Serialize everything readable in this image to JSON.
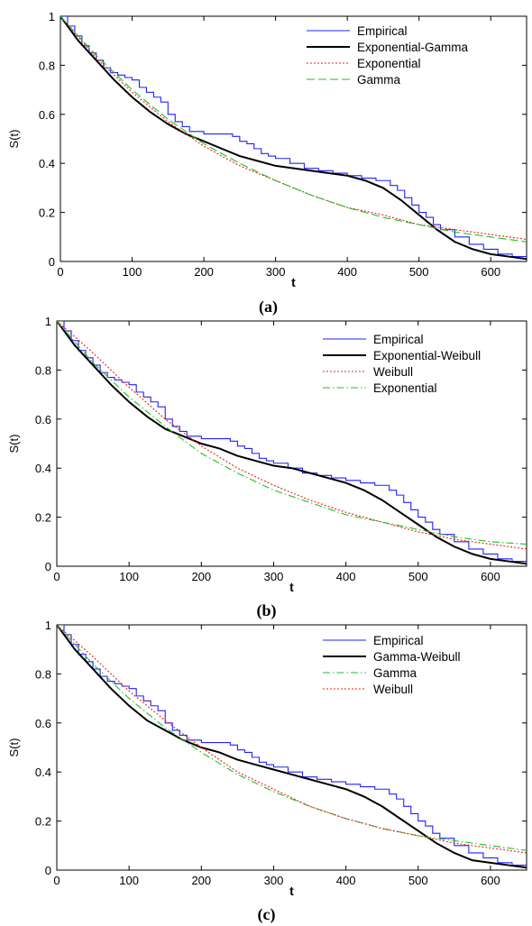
{
  "chart_data": [
    {
      "type": "line",
      "panel_label": "(a)",
      "xlabel": "t",
      "ylabel": "S(t)",
      "xlim": [
        0,
        650
      ],
      "ylim": [
        0,
        1
      ],
      "xticks": [
        0,
        100,
        200,
        300,
        400,
        500,
        600
      ],
      "yticks": [
        0,
        0.2,
        0.4,
        0.6,
        0.8,
        1
      ],
      "xtick_labels": [
        "0",
        "100",
        "200",
        "300",
        "400",
        "500",
        "600"
      ],
      "ytick_labels": [
        "0",
        "0.2",
        "0.4",
        "0.6",
        "0.8",
        "1"
      ],
      "grid": false,
      "legend_position": "top-right",
      "series": [
        {
          "name": "Empirical",
          "color": "#2020ff",
          "style": "step",
          "x": [
            0,
            10,
            20,
            30,
            40,
            50,
            60,
            70,
            80,
            90,
            100,
            110,
            120,
            130,
            140,
            150,
            160,
            170,
            180,
            200,
            220,
            240,
            250,
            260,
            270,
            280,
            290,
            300,
            320,
            340,
            360,
            380,
            400,
            420,
            440,
            460,
            470,
            480,
            490,
            500,
            510,
            520,
            530,
            550,
            570,
            590,
            610,
            630,
            650
          ],
          "y": [
            1.0,
            0.96,
            0.92,
            0.88,
            0.85,
            0.82,
            0.79,
            0.77,
            0.76,
            0.75,
            0.74,
            0.71,
            0.69,
            0.67,
            0.65,
            0.6,
            0.57,
            0.55,
            0.53,
            0.52,
            0.52,
            0.51,
            0.49,
            0.48,
            0.46,
            0.44,
            0.43,
            0.42,
            0.4,
            0.38,
            0.37,
            0.36,
            0.35,
            0.34,
            0.33,
            0.31,
            0.29,
            0.26,
            0.23,
            0.2,
            0.18,
            0.15,
            0.13,
            0.1,
            0.07,
            0.05,
            0.03,
            0.02,
            0.01
          ]
        },
        {
          "name": "Exponential-Gamma",
          "color": "#000000",
          "style": "solid",
          "x": [
            0,
            25,
            50,
            75,
            100,
            125,
            150,
            175,
            200,
            225,
            250,
            275,
            300,
            325,
            350,
            375,
            400,
            425,
            450,
            475,
            500,
            525,
            550,
            575,
            600,
            625,
            650
          ],
          "y": [
            1.0,
            0.9,
            0.82,
            0.74,
            0.67,
            0.61,
            0.56,
            0.52,
            0.49,
            0.46,
            0.43,
            0.41,
            0.39,
            0.38,
            0.37,
            0.36,
            0.35,
            0.33,
            0.3,
            0.25,
            0.19,
            0.13,
            0.08,
            0.05,
            0.03,
            0.02,
            0.01
          ]
        },
        {
          "name": "Exponential",
          "color": "#e82020",
          "style": "dotted",
          "x": [
            0,
            50,
            100,
            150,
            200,
            250,
            300,
            350,
            400,
            450,
            500,
            550,
            600,
            650
          ],
          "y": [
            1.0,
            0.83,
            0.69,
            0.57,
            0.47,
            0.39,
            0.33,
            0.27,
            0.22,
            0.19,
            0.15,
            0.13,
            0.11,
            0.09
          ]
        },
        {
          "name": "Gamma",
          "color": "#20c020",
          "style": "dashed",
          "x": [
            0,
            50,
            100,
            150,
            200,
            250,
            300,
            350,
            400,
            450,
            500,
            550,
            600,
            650
          ],
          "y": [
            1.0,
            0.84,
            0.7,
            0.58,
            0.48,
            0.4,
            0.33,
            0.27,
            0.22,
            0.18,
            0.15,
            0.12,
            0.1,
            0.08
          ]
        }
      ]
    },
    {
      "type": "line",
      "panel_label": "(b)",
      "xlabel": "t",
      "ylabel": "S(t)",
      "xlim": [
        0,
        650
      ],
      "ylim": [
        0,
        1
      ],
      "xticks": [
        0,
        100,
        200,
        300,
        400,
        500,
        600
      ],
      "yticks": [
        0,
        0.2,
        0.4,
        0.6,
        0.8,
        1
      ],
      "xtick_labels": [
        "0",
        "100",
        "200",
        "300",
        "400",
        "500",
        "600"
      ],
      "ytick_labels": [
        "0",
        "0.2",
        "0.4",
        "0.6",
        "0.8",
        "1"
      ],
      "grid": false,
      "legend_position": "top-right",
      "series": [
        {
          "name": "Empirical",
          "color": "#2020ff",
          "style": "step",
          "x": [
            0,
            10,
            20,
            30,
            40,
            50,
            60,
            70,
            80,
            90,
            100,
            110,
            120,
            130,
            140,
            150,
            160,
            170,
            180,
            200,
            220,
            240,
            250,
            260,
            270,
            280,
            290,
            300,
            320,
            340,
            360,
            380,
            400,
            420,
            440,
            460,
            470,
            480,
            490,
            500,
            510,
            520,
            530,
            550,
            570,
            590,
            610,
            630,
            650
          ],
          "y": [
            1.0,
            0.96,
            0.92,
            0.88,
            0.85,
            0.82,
            0.79,
            0.77,
            0.76,
            0.75,
            0.74,
            0.71,
            0.69,
            0.67,
            0.65,
            0.6,
            0.57,
            0.55,
            0.53,
            0.52,
            0.52,
            0.51,
            0.49,
            0.48,
            0.46,
            0.44,
            0.43,
            0.42,
            0.4,
            0.38,
            0.37,
            0.36,
            0.35,
            0.34,
            0.33,
            0.31,
            0.29,
            0.26,
            0.23,
            0.2,
            0.18,
            0.15,
            0.13,
            0.1,
            0.07,
            0.05,
            0.03,
            0.02,
            0.01
          ]
        },
        {
          "name": "Exponential-Weibull",
          "color": "#000000",
          "style": "solid",
          "x": [
            0,
            25,
            50,
            75,
            100,
            125,
            150,
            175,
            200,
            225,
            250,
            275,
            300,
            325,
            350,
            375,
            400,
            425,
            450,
            475,
            500,
            525,
            550,
            575,
            600,
            625,
            650
          ],
          "y": [
            1.0,
            0.9,
            0.82,
            0.74,
            0.67,
            0.61,
            0.56,
            0.53,
            0.5,
            0.48,
            0.45,
            0.43,
            0.41,
            0.4,
            0.38,
            0.36,
            0.34,
            0.31,
            0.27,
            0.22,
            0.17,
            0.12,
            0.08,
            0.05,
            0.03,
            0.02,
            0.01
          ]
        },
        {
          "name": "Weibull",
          "color": "#e82020",
          "style": "dotted",
          "x": [
            0,
            50,
            100,
            150,
            200,
            250,
            300,
            350,
            400,
            450,
            500,
            550,
            600,
            650
          ],
          "y": [
            1.0,
            0.87,
            0.73,
            0.6,
            0.49,
            0.4,
            0.33,
            0.27,
            0.22,
            0.18,
            0.14,
            0.11,
            0.09,
            0.07
          ]
        },
        {
          "name": "Exponential",
          "color": "#20c020",
          "style": "dashdot",
          "x": [
            0,
            50,
            100,
            150,
            200,
            250,
            300,
            350,
            400,
            450,
            500,
            550,
            600,
            650
          ],
          "y": [
            1.0,
            0.83,
            0.69,
            0.57,
            0.46,
            0.38,
            0.31,
            0.26,
            0.21,
            0.18,
            0.15,
            0.12,
            0.1,
            0.09
          ]
        }
      ]
    },
    {
      "type": "line",
      "panel_label": "(c)",
      "xlabel": "t",
      "ylabel": "S(t)",
      "xlim": [
        0,
        650
      ],
      "ylim": [
        0,
        1
      ],
      "xticks": [
        0,
        100,
        200,
        300,
        400,
        500,
        600
      ],
      "yticks": [
        0,
        0.2,
        0.4,
        0.6,
        0.8,
        1
      ],
      "xtick_labels": [
        "0",
        "100",
        "200",
        "300",
        "400",
        "500",
        "600"
      ],
      "ytick_labels": [
        "0",
        "0.2",
        "0.4",
        "0.6",
        "0.8",
        "1"
      ],
      "grid": false,
      "legend_position": "top-right",
      "series": [
        {
          "name": "Empirical",
          "color": "#2020ff",
          "style": "step",
          "x": [
            0,
            10,
            20,
            30,
            40,
            50,
            60,
            70,
            80,
            90,
            100,
            110,
            120,
            130,
            140,
            150,
            160,
            170,
            180,
            200,
            220,
            240,
            250,
            260,
            270,
            280,
            290,
            300,
            320,
            340,
            360,
            380,
            400,
            420,
            440,
            460,
            470,
            480,
            490,
            500,
            510,
            520,
            530,
            550,
            570,
            590,
            610,
            630,
            650
          ],
          "y": [
            1.0,
            0.96,
            0.92,
            0.88,
            0.85,
            0.82,
            0.79,
            0.77,
            0.76,
            0.75,
            0.74,
            0.71,
            0.69,
            0.67,
            0.65,
            0.6,
            0.57,
            0.55,
            0.53,
            0.52,
            0.52,
            0.51,
            0.49,
            0.48,
            0.46,
            0.44,
            0.43,
            0.42,
            0.4,
            0.38,
            0.37,
            0.36,
            0.35,
            0.34,
            0.33,
            0.31,
            0.29,
            0.26,
            0.23,
            0.2,
            0.18,
            0.15,
            0.13,
            0.1,
            0.07,
            0.05,
            0.03,
            0.02,
            0.01
          ]
        },
        {
          "name": "Gamma-Weibull",
          "color": "#000000",
          "style": "solid",
          "x": [
            0,
            25,
            50,
            75,
            100,
            125,
            150,
            175,
            200,
            225,
            250,
            275,
            300,
            325,
            350,
            375,
            400,
            425,
            450,
            475,
            500,
            525,
            550,
            575,
            600,
            625,
            650
          ],
          "y": [
            1.0,
            0.9,
            0.82,
            0.74,
            0.67,
            0.61,
            0.57,
            0.53,
            0.5,
            0.48,
            0.45,
            0.43,
            0.41,
            0.39,
            0.37,
            0.35,
            0.33,
            0.3,
            0.26,
            0.21,
            0.16,
            0.11,
            0.07,
            0.04,
            0.03,
            0.02,
            0.01
          ]
        },
        {
          "name": "Gamma",
          "color": "#20c020",
          "style": "dashdot",
          "x": [
            0,
            50,
            100,
            150,
            200,
            250,
            300,
            350,
            400,
            450,
            500,
            550,
            600,
            650
          ],
          "y": [
            1.0,
            0.84,
            0.7,
            0.58,
            0.48,
            0.39,
            0.32,
            0.26,
            0.21,
            0.17,
            0.14,
            0.12,
            0.1,
            0.08
          ]
        },
        {
          "name": "Weibull",
          "color": "#e82020",
          "style": "dotted",
          "x": [
            0,
            50,
            100,
            150,
            200,
            250,
            300,
            350,
            400,
            450,
            500,
            550,
            600,
            650
          ],
          "y": [
            1.0,
            0.87,
            0.73,
            0.61,
            0.5,
            0.4,
            0.33,
            0.26,
            0.21,
            0.17,
            0.14,
            0.11,
            0.09,
            0.07
          ]
        }
      ]
    }
  ]
}
